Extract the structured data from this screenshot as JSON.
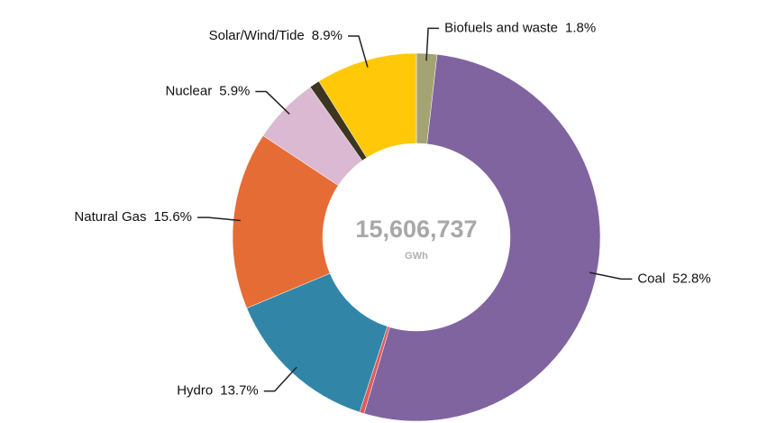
{
  "chart_data": {
    "type": "donut",
    "categories": [
      "Biofuels and waste",
      "Coal",
      null,
      "Hydro",
      "Natural Gas",
      "Nuclear",
      null,
      "Solar/Wind/Tide"
    ],
    "values": [
      1.8,
      52.8,
      0.4,
      13.7,
      15.6,
      5.9,
      0.9,
      8.9
    ],
    "value_labels": [
      "1.8%",
      "52.8%",
      null,
      "13.7%",
      "15.6%",
      "5.9%",
      null,
      "8.9%"
    ],
    "colors": [
      "#a3a374",
      "#8064a0",
      "#e05a5a",
      "#3186a8",
      "#e66c35",
      "#dcb9d2",
      "#3b3522",
      "#ffc90a"
    ],
    "center_text": "15,606,737",
    "center_unit": "GWh"
  }
}
